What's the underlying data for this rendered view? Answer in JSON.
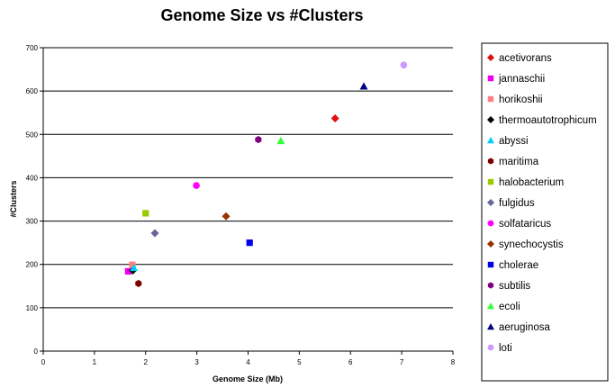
{
  "chart_data": {
    "type": "scatter",
    "title": "Genome Size vs #Clusters",
    "xlabel": "Genome Size (Mb)",
    "ylabel": "#Clusters",
    "xlim": [
      0,
      8
    ],
    "ylim": [
      0,
      700
    ],
    "xticks": [
      0,
      1,
      2,
      3,
      4,
      5,
      6,
      7,
      8
    ],
    "yticks": [
      0,
      100,
      200,
      300,
      400,
      500,
      600,
      700
    ],
    "grid": "horizontal",
    "legend_position": "right",
    "series": [
      {
        "name": "acetivorans",
        "color": "#e01010",
        "marker": "diamond",
        "x": 5.7,
        "y": 537
      },
      {
        "name": "jannaschii",
        "color": "#ee00ee",
        "marker": "square",
        "x": 1.66,
        "y": 184
      },
      {
        "name": "horikoshii",
        "color": "#ff8080",
        "marker": "square",
        "x": 1.74,
        "y": 199
      },
      {
        "name": "thermoautotrophicum",
        "color": "#000000",
        "marker": "diamond",
        "x": 1.75,
        "y": 186
      },
      {
        "name": "abyssi",
        "color": "#00ccff",
        "marker": "triangle",
        "x": 1.77,
        "y": 192
      },
      {
        "name": "maritima",
        "color": "#800000",
        "marker": "hexagon",
        "x": 1.86,
        "y": 156
      },
      {
        "name": "halobacterium",
        "color": "#99cc00",
        "marker": "square",
        "x": 2.0,
        "y": 318
      },
      {
        "name": "fulgidus",
        "color": "#666699",
        "marker": "diamond",
        "x": 2.18,
        "y": 272
      },
      {
        "name": "solfataricus",
        "color": "#ff00ff",
        "marker": "circle",
        "x": 2.99,
        "y": 382
      },
      {
        "name": "synechocystis",
        "color": "#993300",
        "marker": "diamond",
        "x": 3.57,
        "y": 311
      },
      {
        "name": "cholerae",
        "color": "#0000ee",
        "marker": "square",
        "x": 4.03,
        "y": 250
      },
      {
        "name": "subtilis",
        "color": "#800080",
        "marker": "hexagon",
        "x": 4.2,
        "y": 488
      },
      {
        "name": "ecoli",
        "color": "#33ff33",
        "marker": "triangle",
        "x": 4.64,
        "y": 485
      },
      {
        "name": "aeruginosa",
        "color": "#000080",
        "marker": "triangle",
        "x": 6.26,
        "y": 611
      },
      {
        "name": "loti",
        "color": "#cc99ff",
        "marker": "circle",
        "x": 7.04,
        "y": 660
      }
    ]
  }
}
